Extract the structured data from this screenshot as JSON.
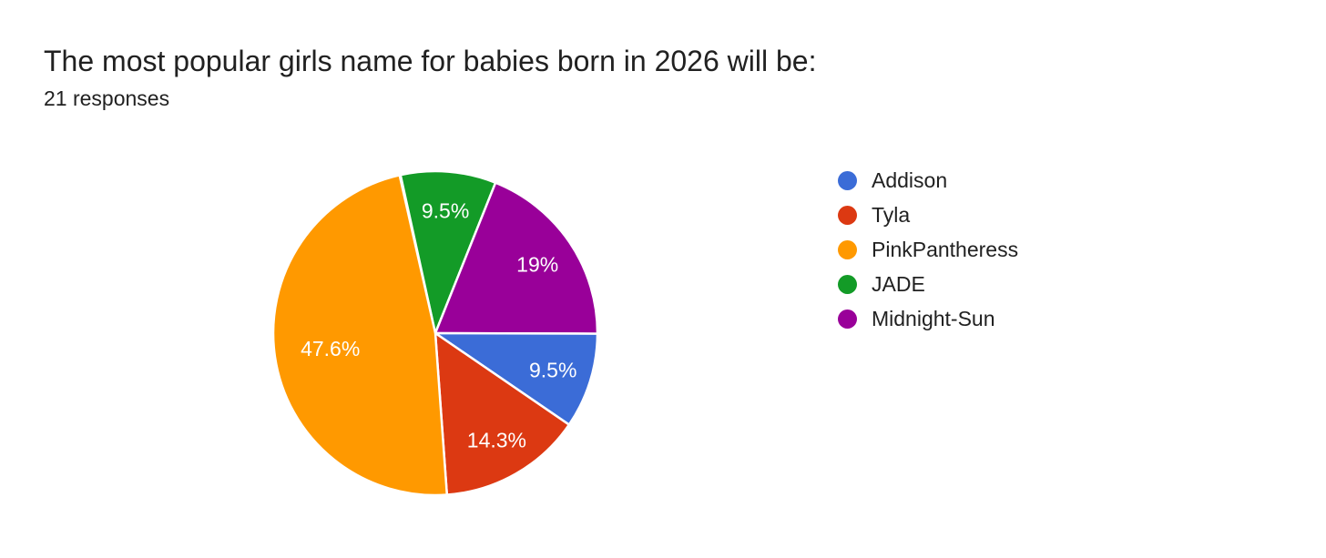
{
  "header": {
    "title": "The most popular girls name for babies born in 2026 will be:",
    "responses": "21 responses"
  },
  "chart_data": {
    "type": "pie",
    "title": "The most popular girls name for babies born in 2026 will be:",
    "subtitle": "21 responses",
    "legend_position": "right",
    "background": "#ffffff",
    "slice_border_color": "#ffffff",
    "categories": [
      "Addison",
      "Tyla",
      "PinkPantheress",
      "JADE",
      "Midnight-Sun"
    ],
    "values": [
      9.5,
      14.3,
      47.6,
      9.5,
      19
    ],
    "slices": [
      {
        "name": "Addison",
        "value_pct": 9.5,
        "label": "9.5%",
        "color": "#3B6CD7"
      },
      {
        "name": "Tyla",
        "value_pct": 14.3,
        "label": "14.3%",
        "color": "#DC3912"
      },
      {
        "name": "PinkPantheress",
        "value_pct": 47.6,
        "label": "47.6%",
        "color": "#FF9900"
      },
      {
        "name": "JADE",
        "value_pct": 9.5,
        "label": "9.5%",
        "color": "#139B27"
      },
      {
        "name": "Midnight-Sun",
        "value_pct": 19,
        "label": "19%",
        "color": "#990099"
      }
    ],
    "draw_order": [
      3,
      4,
      0,
      1,
      2
    ],
    "start_angle_deg": -12.4,
    "clockwise": true
  }
}
